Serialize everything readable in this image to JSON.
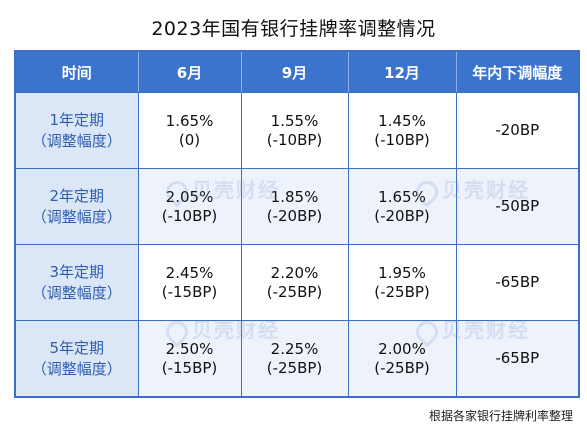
{
  "title": "2023年国有银行挂牌率调整情况",
  "table": {
    "headers": [
      "时间",
      "6月",
      "9月",
      "12月",
      "年内下调幅度"
    ],
    "rows": [
      {
        "label_line1": "1年定期",
        "label_line2": "（调整幅度）",
        "cells": [
          {
            "rate": "1.65%",
            "change": "(0)"
          },
          {
            "rate": "1.55%",
            "change": "(-10BP)"
          },
          {
            "rate": "1.45%",
            "change": "(-10BP)"
          }
        ],
        "total": "-20BP"
      },
      {
        "label_line1": "2年定期",
        "label_line2": "（调整幅度）",
        "cells": [
          {
            "rate": "2.05%",
            "change": "(-10BP)"
          },
          {
            "rate": "1.85%",
            "change": "(-20BP)"
          },
          {
            "rate": "1.65%",
            "change": "(-20BP)"
          }
        ],
        "total": "-50BP"
      },
      {
        "label_line1": "3年定期",
        "label_line2": "（调整幅度）",
        "cells": [
          {
            "rate": "2.45%",
            "change": "(-15BP)"
          },
          {
            "rate": "2.20%",
            "change": "(-25BP)"
          },
          {
            "rate": "1.95%",
            "change": "(-25BP)"
          }
        ],
        "total": "-65BP"
      },
      {
        "label_line1": "5年定期",
        "label_line2": "（调整幅度）",
        "cells": [
          {
            "rate": "2.50%",
            "change": "(-15BP)"
          },
          {
            "rate": "2.25%",
            "change": "(-25BP)"
          },
          {
            "rate": "2.00%",
            "change": "(-25BP)"
          }
        ],
        "total": "-65BP"
      }
    ]
  },
  "watermark": "贝壳财经",
  "footnote": "根据各家银行挂牌利率整理",
  "colors": {
    "header_bg": "#3c73cc",
    "row_label_bg": "#dbe6f7",
    "row_label_text": "#2f5db0",
    "border": "#3a6fc4"
  }
}
